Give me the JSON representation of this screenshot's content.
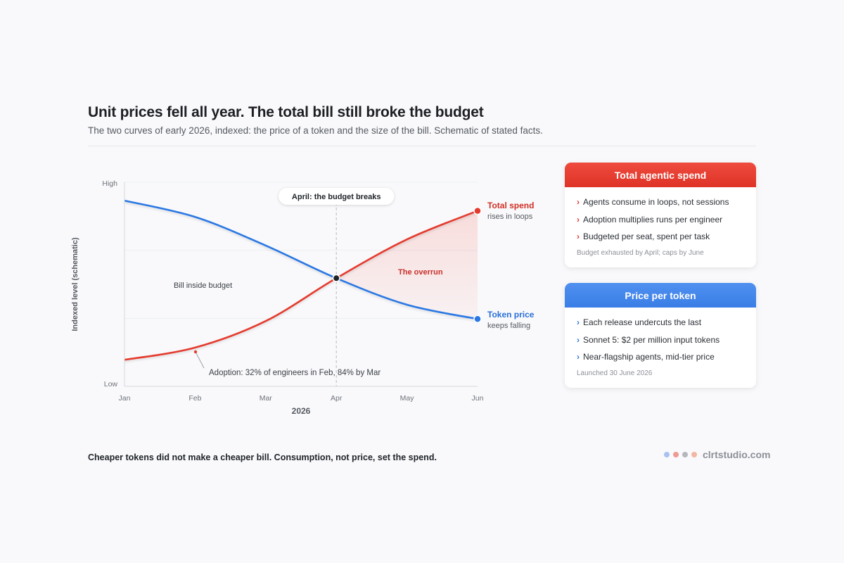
{
  "header": {
    "title": "Unit prices fell all year. The total bill still broke the budget",
    "subtitle": "The two curves of early 2026, indexed: the price of a token and the size of the bill. Schematic of stated facts."
  },
  "chart_data": {
    "type": "line",
    "x": [
      "Jan",
      "Feb",
      "Mar",
      "Apr",
      "May",
      "Jun"
    ],
    "xlabel": "2026",
    "ylabel": "Indexed level (schematic)",
    "y_tick_labels": {
      "high": "High",
      "low": "Low"
    },
    "ylim": [
      0,
      100
    ],
    "series": [
      {
        "name": "Total spend",
        "sublabel": "rises in loops",
        "color": "#e53b2e",
        "values": [
          13,
          19,
          32,
          53,
          72,
          86
        ]
      },
      {
        "name": "Token price",
        "sublabel": "keeps falling",
        "color": "#2b78e4",
        "values": [
          91,
          83,
          69,
          53,
          40,
          33
        ]
      }
    ],
    "annotations": {
      "vertical_marker": {
        "x": "Apr",
        "label": "April: the budget breaks"
      },
      "region_before": "Bill inside budget",
      "region_after": "The overrun",
      "adoption": "Adoption: 32% of engineers in Feb, 84% by Mar"
    },
    "grid": true
  },
  "cards": {
    "spend": {
      "title": "Total agentic spend",
      "items": [
        "Agents consume in loops, not sessions",
        "Adoption multiplies runs per engineer",
        "Budgeted per seat, spent per task"
      ],
      "note": "Budget exhausted by April; caps by June",
      "color": "#e03a2e"
    },
    "price": {
      "title": "Price per token",
      "items": [
        "Each release undercuts the last",
        "Sonnet 5: $2 per million input tokens",
        "Near-flagship agents, mid-tier price"
      ],
      "note": "Launched 30 June 2026",
      "color": "#2f75e0"
    }
  },
  "footer": {
    "text": "Cheaper tokens did not make a cheaper bill. Consumption, not price, set the spend.",
    "brand": "clrtstudio.com",
    "dot_colors": [
      "#a9c1f0",
      "#ef9a93",
      "#b4b7bc",
      "#f2b7a4"
    ]
  }
}
